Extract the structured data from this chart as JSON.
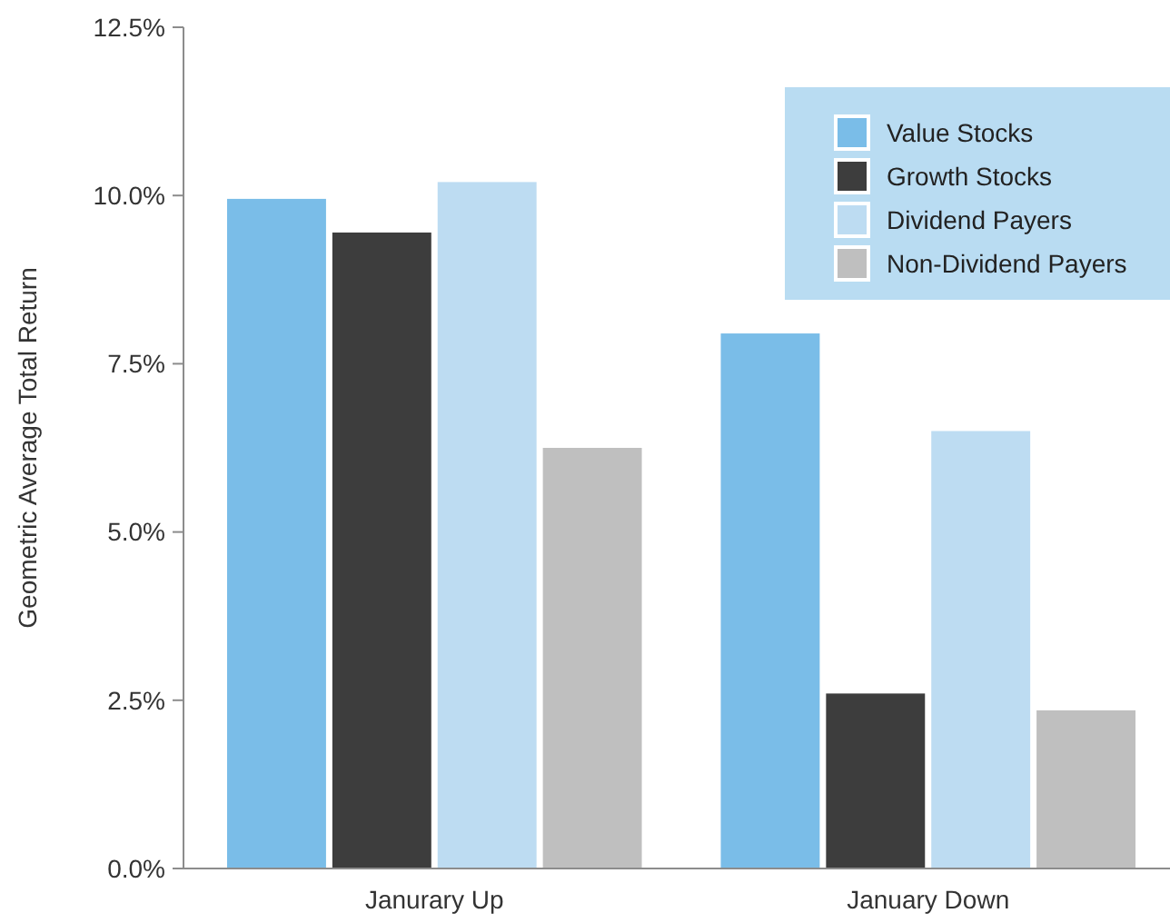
{
  "chart_data": {
    "type": "bar",
    "ylabel": "Geometric Average Total Return",
    "categories": [
      "Janurary Up",
      "January Down"
    ],
    "series": [
      {
        "name": "Value Stocks",
        "color": "#7abde8",
        "values": [
          9.95,
          7.95
        ]
      },
      {
        "name": "Growth Stocks",
        "color": "#3d3d3d",
        "values": [
          9.45,
          2.6
        ]
      },
      {
        "name": "Dividend Payers",
        "color": "#bddcf2",
        "values": [
          10.2,
          6.5
        ]
      },
      {
        "name": "Non-Dividend Payers",
        "color": "#bfbfbf",
        "values": [
          6.25,
          2.35
        ]
      }
    ],
    "ylim": [
      0,
      12.5
    ],
    "yticks": [
      {
        "value": 0,
        "label": "0.0%"
      },
      {
        "value": 2.5,
        "label": "2.5%"
      },
      {
        "value": 5,
        "label": "5.0%"
      },
      {
        "value": 7.5,
        "label": "7.5%"
      },
      {
        "value": 10,
        "label": "10.0%"
      },
      {
        "value": 12.5,
        "label": "12.5%"
      }
    ],
    "grid": false,
    "legend": "top right"
  }
}
